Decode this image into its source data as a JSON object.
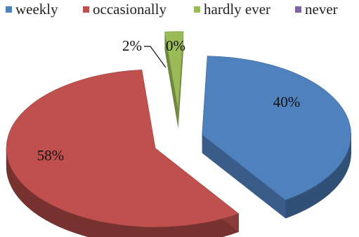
{
  "chart_data": {
    "type": "pie",
    "title": "",
    "categories": [
      "weekly",
      "occasionally",
      "hardly ever",
      "never"
    ],
    "values": [
      40,
      58,
      2,
      0
    ],
    "data_labels": [
      "40%",
      "58%",
      "2%",
      "0%"
    ],
    "colors": [
      "#4f81bd",
      "#c0504d",
      "#9bbb59",
      "#8064a2"
    ],
    "legend_position": "top",
    "style": "3d-exploded"
  }
}
